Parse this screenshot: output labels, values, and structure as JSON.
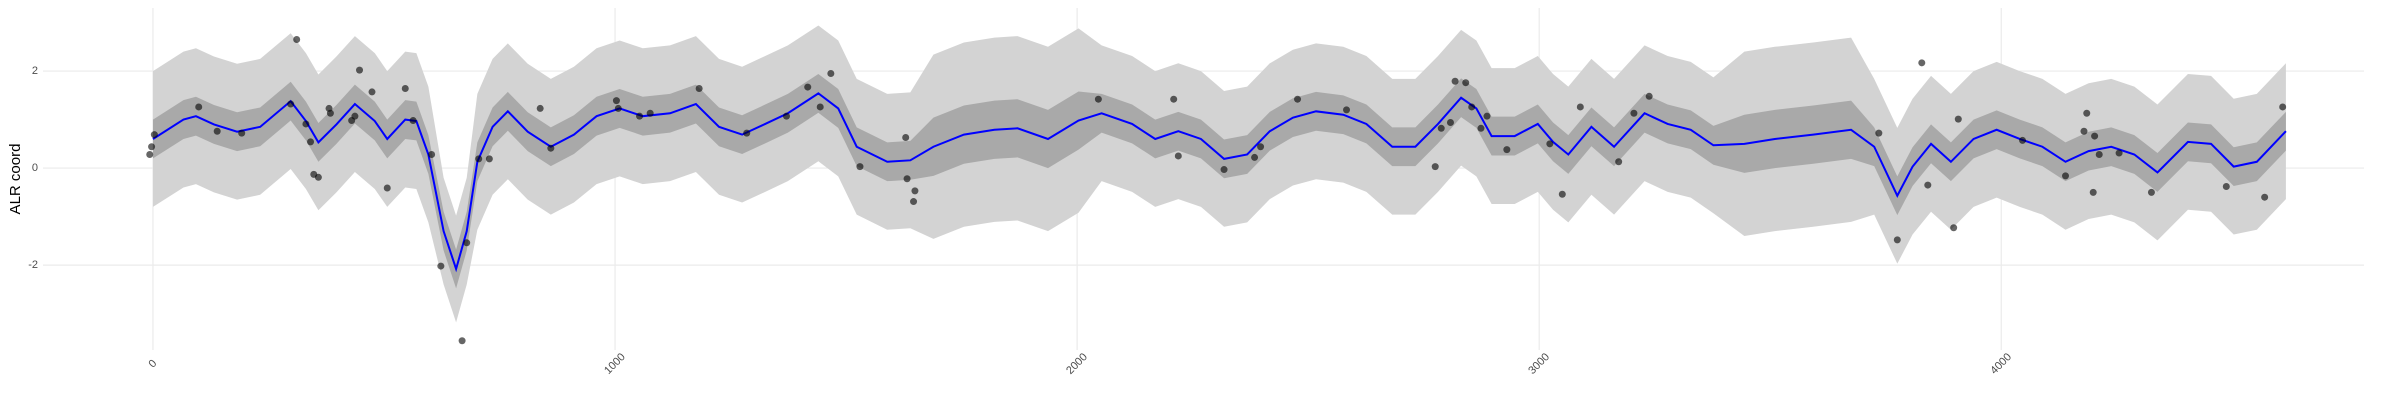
{
  "chart_data": {
    "type": "line",
    "y_label": "ALR coord",
    "x": [
      0,
      66,
      93,
      132,
      182,
      232,
      298,
      331,
      358,
      397,
      437,
      480,
      507,
      546,
      570,
      596,
      629,
      656,
      679,
      702,
      735,
      768,
      811,
      861,
      911,
      960,
      1010,
      1060,
      1119,
      1175,
      1225,
      1275,
      1325,
      1374,
      1440,
      1483,
      1523,
      1589,
      1639,
      1689,
      1755,
      1821,
      1871,
      1937,
      2003,
      2053,
      2119,
      2169,
      2219,
      2268,
      2318,
      2368,
      2417,
      2467,
      2517,
      2576,
      2626,
      2682,
      2732,
      2781,
      2831,
      2864,
      2897,
      2947,
      2997,
      3030,
      3063,
      3113,
      3162,
      3228,
      3278,
      3328,
      3377,
      3444,
      3510,
      3593,
      3675,
      3725,
      3775,
      3808,
      3848,
      3891,
      3940,
      3990,
      4040,
      4089,
      4139,
      4189,
      4238,
      4288,
      4338,
      4404,
      4454,
      4503,
      4553,
      4616
    ],
    "series": [
      {
        "color": "#0000ff",
        "values": [
          0.6,
          1.0,
          1.07,
          0.9,
          0.75,
          0.85,
          1.38,
          0.97,
          0.53,
          0.9,
          1.32,
          0.97,
          0.6,
          1.0,
          0.97,
          0.28,
          -1.3,
          -2.08,
          -1.3,
          0.13,
          0.85,
          1.17,
          0.75,
          0.44,
          0.69,
          1.07,
          1.23,
          1.07,
          1.13,
          1.32,
          0.85,
          0.69,
          0.91,
          1.13,
          1.54,
          1.23,
          0.44,
          0.13,
          0.16,
          0.44,
          0.69,
          0.79,
          0.82,
          0.6,
          0.98,
          1.13,
          0.91,
          0.6,
          0.76,
          0.6,
          0.19,
          0.28,
          0.76,
          1.04,
          1.17,
          1.1,
          0.91,
          0.44,
          0.44,
          0.91,
          1.45,
          1.23,
          0.66,
          0.66,
          0.91,
          0.54,
          0.28,
          0.85,
          0.44,
          1.13,
          0.91,
          0.79,
          0.47,
          0.5,
          0.6,
          0.69,
          0.79,
          0.44,
          -0.57,
          0.03,
          0.5,
          0.13,
          0.6,
          0.79,
          0.6,
          0.44,
          0.13,
          0.35,
          0.44,
          0.28,
          -0.09,
          0.54,
          0.5,
          0.03,
          0.13,
          0.76
        ]
      }
    ],
    "bands": [
      {
        "color": "#d3d3d3",
        "lower": [
          -0.8,
          -0.4,
          -0.33,
          -0.5,
          -0.65,
          -0.55,
          -0.02,
          -0.43,
          -0.87,
          -0.5,
          -0.08,
          -0.43,
          -0.8,
          -0.4,
          -0.43,
          -1.12,
          -2.4,
          -3.18,
          -2.4,
          -1.27,
          -0.55,
          -0.23,
          -0.65,
          -0.96,
          -0.71,
          -0.33,
          -0.17,
          -0.33,
          -0.27,
          -0.08,
          -0.55,
          -0.71,
          -0.49,
          -0.27,
          0.14,
          -0.17,
          -0.96,
          -1.27,
          -1.24,
          -1.46,
          -1.21,
          -1.11,
          -1.08,
          -1.3,
          -0.92,
          -0.27,
          -0.49,
          -0.8,
          -0.64,
          -0.8,
          -1.21,
          -1.12,
          -0.64,
          -0.36,
          -0.23,
          -0.3,
          -0.49,
          -0.96,
          -0.96,
          -0.49,
          0.05,
          -0.17,
          -0.74,
          -0.74,
          -0.49,
          -0.86,
          -1.12,
          -0.55,
          -0.96,
          -0.27,
          -0.49,
          -0.61,
          -0.93,
          -1.4,
          -1.3,
          -1.21,
          -1.11,
          -0.96,
          -1.97,
          -1.37,
          -0.9,
          -1.27,
          -0.8,
          -0.61,
          -0.8,
          -0.96,
          -1.27,
          -1.05,
          -0.96,
          -1.12,
          -1.49,
          -0.86,
          -0.9,
          -1.37,
          -1.27,
          -0.64
        ],
        "upper": [
          2.0,
          2.4,
          2.47,
          2.3,
          2.15,
          2.25,
          2.78,
          2.37,
          1.93,
          2.3,
          2.72,
          2.37,
          2.0,
          2.4,
          2.37,
          1.68,
          -0.2,
          -0.98,
          -0.2,
          1.53,
          2.25,
          2.57,
          2.15,
          1.84,
          2.09,
          2.47,
          2.63,
          2.47,
          2.53,
          2.72,
          2.25,
          2.09,
          2.31,
          2.53,
          2.94,
          2.63,
          1.84,
          1.53,
          1.56,
          2.34,
          2.59,
          2.69,
          2.72,
          2.5,
          2.88,
          2.53,
          2.31,
          2.0,
          2.16,
          2.0,
          1.59,
          1.68,
          2.16,
          2.44,
          2.57,
          2.5,
          2.31,
          1.84,
          1.84,
          2.31,
          2.85,
          2.63,
          2.06,
          2.06,
          2.31,
          1.94,
          1.68,
          2.25,
          1.84,
          2.53,
          2.31,
          2.19,
          1.87,
          2.4,
          2.5,
          2.59,
          2.69,
          1.84,
          0.83,
          1.43,
          1.9,
          1.53,
          2.0,
          2.19,
          2.0,
          1.84,
          1.53,
          1.75,
          1.84,
          1.68,
          1.31,
          1.94,
          1.9,
          1.43,
          1.53,
          2.16
        ]
      },
      {
        "color": "#a9a9a9",
        "lower": [
          0.2,
          0.6,
          0.67,
          0.5,
          0.35,
          0.45,
          0.98,
          0.57,
          0.13,
          0.5,
          0.92,
          0.57,
          0.2,
          0.6,
          0.57,
          -0.12,
          -1.7,
          -2.48,
          -1.7,
          -0.27,
          0.45,
          0.77,
          0.35,
          0.04,
          0.29,
          0.67,
          0.83,
          0.67,
          0.73,
          0.92,
          0.45,
          0.29,
          0.51,
          0.73,
          1.14,
          0.83,
          0.04,
          -0.27,
          -0.24,
          -0.16,
          0.09,
          0.19,
          0.22,
          0.0,
          0.38,
          0.73,
          0.51,
          0.2,
          0.36,
          0.2,
          -0.21,
          -0.12,
          0.36,
          0.64,
          0.77,
          0.7,
          0.51,
          0.04,
          0.04,
          0.51,
          1.05,
          0.83,
          0.26,
          0.26,
          0.51,
          0.14,
          -0.12,
          0.45,
          0.04,
          0.73,
          0.51,
          0.39,
          0.07,
          -0.1,
          0.0,
          0.09,
          0.19,
          0.04,
          -0.97,
          -0.37,
          0.1,
          -0.27,
          0.2,
          0.39,
          0.2,
          0.04,
          -0.27,
          -0.05,
          0.04,
          -0.12,
          -0.49,
          0.14,
          0.1,
          -0.37,
          -0.27,
          0.36
        ],
        "upper": [
          1.0,
          1.4,
          1.47,
          1.3,
          1.15,
          1.25,
          1.78,
          1.37,
          0.93,
          1.3,
          1.72,
          1.37,
          1.0,
          1.4,
          1.37,
          0.68,
          -0.9,
          -1.68,
          -0.9,
          0.53,
          1.25,
          1.57,
          1.15,
          0.84,
          1.09,
          1.47,
          1.63,
          1.47,
          1.53,
          1.72,
          1.25,
          1.09,
          1.31,
          1.53,
          1.94,
          1.63,
          0.84,
          0.53,
          0.56,
          1.04,
          1.29,
          1.39,
          1.42,
          1.2,
          1.58,
          1.53,
          1.31,
          1.0,
          1.16,
          1.0,
          0.59,
          0.68,
          1.16,
          1.44,
          1.57,
          1.5,
          1.31,
          0.84,
          0.84,
          1.31,
          1.85,
          1.63,
          1.06,
          1.06,
          1.31,
          0.94,
          0.68,
          1.25,
          0.84,
          1.53,
          1.31,
          1.19,
          0.87,
          1.1,
          1.2,
          1.29,
          1.39,
          0.84,
          -0.17,
          0.43,
          0.9,
          0.53,
          1.0,
          1.19,
          1.0,
          0.84,
          0.53,
          0.75,
          0.84,
          0.68,
          0.31,
          0.94,
          0.9,
          0.43,
          0.53,
          1.16
        ]
      }
    ],
    "points": {
      "color": "#000000",
      "opacity": 0.6,
      "x": [
        -7,
        -3,
        3,
        99,
        139,
        192,
        298,
        311,
        331,
        341,
        348,
        358,
        381,
        384,
        430,
        437,
        447,
        474,
        507,
        546,
        563,
        603,
        623,
        669,
        679,
        705,
        728,
        838,
        861,
        1003,
        1007,
        1053,
        1076,
        1182,
        1285,
        1371,
        1417,
        1444,
        1467,
        1530,
        1629,
        1632,
        1646,
        1649,
        2046,
        2209,
        2219,
        2318,
        2384,
        2397,
        2477,
        2583,
        2775,
        2788,
        2808,
        2818,
        2841,
        2854,
        2874,
        2887,
        2930,
        3023,
        3050,
        3089,
        3172,
        3205,
        3238,
        3735,
        3775,
        3828,
        3841,
        3897,
        3907,
        4046,
        4139,
        4179,
        4185,
        4199,
        4202,
        4212,
        4255,
        4325,
        4487,
        4570,
        4609
      ],
      "y": [
        0.28,
        0.44,
        0.69,
        1.26,
        0.76,
        0.72,
        1.32,
        2.65,
        0.91,
        0.54,
        -0.13,
        -0.19,
        1.23,
        1.13,
        0.98,
        1.07,
        2.02,
        1.57,
        -0.41,
        1.64,
        0.98,
        0.28,
        -2.02,
        -3.56,
        -1.54,
        0.19,
        0.19,
        1.23,
        0.41,
        1.39,
        1.23,
        1.07,
        1.13,
        1.64,
        0.72,
        1.07,
        1.67,
        1.26,
        1.95,
        0.03,
        0.63,
        -0.22,
        -0.69,
        -0.47,
        1.42,
        1.42,
        0.25,
        -0.03,
        0.22,
        0.44,
        1.42,
        1.2,
        0.03,
        0.82,
        0.94,
        1.79,
        1.76,
        1.26,
        0.82,
        1.07,
        0.38,
        0.5,
        -0.54,
        1.26,
        0.13,
        1.13,
        1.48,
        0.72,
        -1.48,
        2.17,
        -0.35,
        -1.23,
        1.01,
        0.57,
        -0.16,
        0.76,
        1.13,
        -0.5,
        0.66,
        0.28,
        0.31,
        -0.5,
        -0.38,
        -0.6,
        1.26
      ]
    },
    "xlim": [
      -238,
      4785
    ],
    "ylim": [
      -3.75,
      3.3
    ],
    "xticks": [
      0,
      1000,
      2000,
      3000,
      4000
    ],
    "yticks": [
      -2,
      0,
      2
    ],
    "grid": true
  }
}
